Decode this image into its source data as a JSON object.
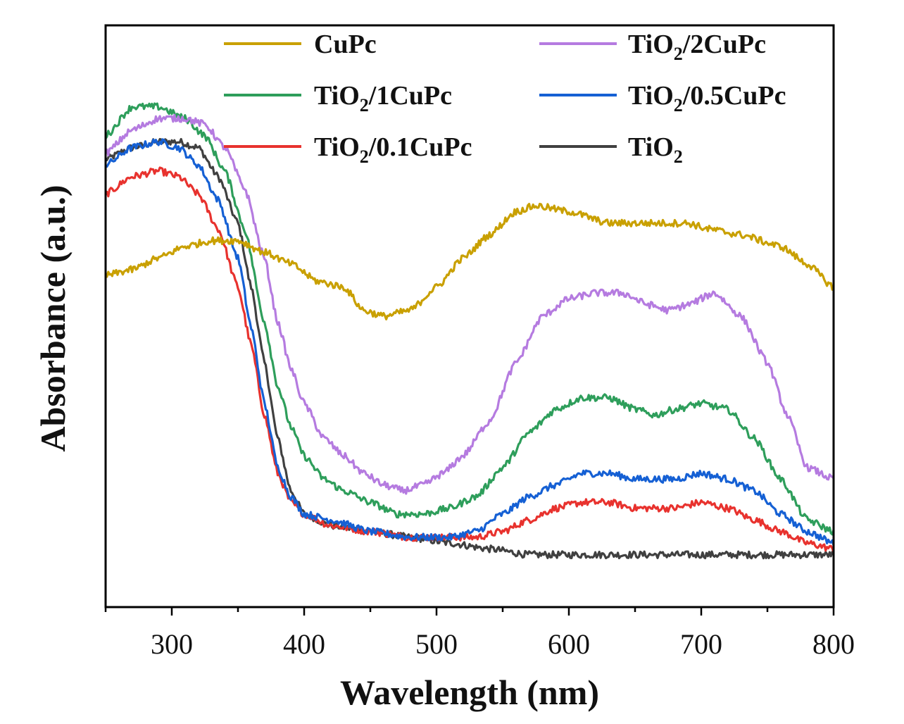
{
  "chart_data": {
    "type": "line",
    "xlabel": "Wavelength (nm)",
    "ylabel": "Absorbance (a.u.)",
    "xlim": [
      250,
      800
    ],
    "ylim": [
      0,
      1
    ],
    "xticks": [
      300,
      400,
      500,
      600,
      700,
      800
    ],
    "yticks": [],
    "legend_position": "top",
    "grid": false,
    "series": [
      {
        "name": "CuPc",
        "label_main": "CuPc",
        "label_sub": "",
        "label_tail": "",
        "color": "#C9A000",
        "points": [
          [
            250,
            0.57
          ],
          [
            270,
            0.58
          ],
          [
            290,
            0.6
          ],
          [
            310,
            0.62
          ],
          [
            330,
            0.63
          ],
          [
            350,
            0.63
          ],
          [
            370,
            0.61
          ],
          [
            390,
            0.59
          ],
          [
            410,
            0.56
          ],
          [
            430,
            0.55
          ],
          [
            445,
            0.51
          ],
          [
            460,
            0.5
          ],
          [
            480,
            0.51
          ],
          [
            500,
            0.55
          ],
          [
            520,
            0.6
          ],
          [
            540,
            0.64
          ],
          [
            560,
            0.68
          ],
          [
            575,
            0.69
          ],
          [
            600,
            0.68
          ],
          [
            630,
            0.66
          ],
          [
            660,
            0.66
          ],
          [
            690,
            0.66
          ],
          [
            705,
            0.65
          ],
          [
            730,
            0.64
          ],
          [
            760,
            0.62
          ],
          [
            780,
            0.59
          ],
          [
            800,
            0.55
          ]
        ]
      },
      {
        "name": "TiO2/2CuPc",
        "label_main": "TiO",
        "label_sub": "2",
        "label_tail": "/2CuPc",
        "color": "#B57BE0",
        "points": [
          [
            250,
            0.78
          ],
          [
            270,
            0.82
          ],
          [
            290,
            0.84
          ],
          [
            310,
            0.84
          ],
          [
            325,
            0.83
          ],
          [
            340,
            0.79
          ],
          [
            355,
            0.72
          ],
          [
            370,
            0.6
          ],
          [
            380,
            0.49
          ],
          [
            390,
            0.41
          ],
          [
            400,
            0.35
          ],
          [
            415,
            0.29
          ],
          [
            430,
            0.26
          ],
          [
            445,
            0.23
          ],
          [
            460,
            0.21
          ],
          [
            475,
            0.2
          ],
          [
            490,
            0.21
          ],
          [
            505,
            0.23
          ],
          [
            520,
            0.26
          ],
          [
            540,
            0.32
          ],
          [
            560,
            0.42
          ],
          [
            580,
            0.5
          ],
          [
            600,
            0.53
          ],
          [
            620,
            0.54
          ],
          [
            640,
            0.54
          ],
          [
            660,
            0.52
          ],
          [
            675,
            0.51
          ],
          [
            690,
            0.52
          ],
          [
            710,
            0.54
          ],
          [
            730,
            0.5
          ],
          [
            750,
            0.42
          ],
          [
            765,
            0.33
          ],
          [
            780,
            0.24
          ],
          [
            800,
            0.22
          ]
        ]
      },
      {
        "name": "TiO2/1CuPc",
        "label_main": "TiO",
        "label_sub": "2",
        "label_tail": "/1CuPc",
        "color": "#2E9E5B",
        "points": [
          [
            250,
            0.81
          ],
          [
            270,
            0.86
          ],
          [
            290,
            0.86
          ],
          [
            310,
            0.84
          ],
          [
            325,
            0.81
          ],
          [
            340,
            0.75
          ],
          [
            355,
            0.65
          ],
          [
            370,
            0.49
          ],
          [
            380,
            0.38
          ],
          [
            390,
            0.31
          ],
          [
            400,
            0.26
          ],
          [
            415,
            0.22
          ],
          [
            430,
            0.2
          ],
          [
            450,
            0.18
          ],
          [
            470,
            0.16
          ],
          [
            490,
            0.16
          ],
          [
            510,
            0.17
          ],
          [
            530,
            0.19
          ],
          [
            550,
            0.24
          ],
          [
            570,
            0.3
          ],
          [
            590,
            0.34
          ],
          [
            610,
            0.36
          ],
          [
            630,
            0.36
          ],
          [
            650,
            0.34
          ],
          [
            665,
            0.33
          ],
          [
            680,
            0.34
          ],
          [
            700,
            0.35
          ],
          [
            720,
            0.34
          ],
          [
            740,
            0.29
          ],
          [
            760,
            0.22
          ],
          [
            780,
            0.15
          ],
          [
            800,
            0.13
          ]
        ]
      },
      {
        "name": "TiO2/0.5CuPc",
        "label_main": "TiO",
        "label_sub": "2",
        "label_tail": "/0.5CuPc",
        "color": "#1560D4",
        "points": [
          [
            250,
            0.76
          ],
          [
            270,
            0.79
          ],
          [
            290,
            0.8
          ],
          [
            305,
            0.79
          ],
          [
            320,
            0.76
          ],
          [
            335,
            0.7
          ],
          [
            350,
            0.6
          ],
          [
            360,
            0.48
          ],
          [
            370,
            0.35
          ],
          [
            380,
            0.24
          ],
          [
            390,
            0.19
          ],
          [
            400,
            0.16
          ],
          [
            420,
            0.15
          ],
          [
            450,
            0.13
          ],
          [
            480,
            0.12
          ],
          [
            510,
            0.12
          ],
          [
            530,
            0.13
          ],
          [
            550,
            0.16
          ],
          [
            570,
            0.19
          ],
          [
            590,
            0.21
          ],
          [
            610,
            0.23
          ],
          [
            630,
            0.23
          ],
          [
            650,
            0.22
          ],
          [
            665,
            0.22
          ],
          [
            680,
            0.22
          ],
          [
            700,
            0.23
          ],
          [
            720,
            0.22
          ],
          [
            740,
            0.2
          ],
          [
            760,
            0.16
          ],
          [
            780,
            0.13
          ],
          [
            800,
            0.11
          ]
        ]
      },
      {
        "name": "TiO2/0.1CuPc",
        "label_main": "TiO",
        "label_sub": "2",
        "label_tail": "/0.1CuPc",
        "color": "#E8322E",
        "points": [
          [
            250,
            0.71
          ],
          [
            270,
            0.74
          ],
          [
            290,
            0.75
          ],
          [
            305,
            0.74
          ],
          [
            320,
            0.71
          ],
          [
            335,
            0.65
          ],
          [
            350,
            0.55
          ],
          [
            360,
            0.45
          ],
          [
            370,
            0.33
          ],
          [
            380,
            0.23
          ],
          [
            390,
            0.18
          ],
          [
            400,
            0.16
          ],
          [
            420,
            0.14
          ],
          [
            450,
            0.13
          ],
          [
            480,
            0.12
          ],
          [
            510,
            0.12
          ],
          [
            530,
            0.12
          ],
          [
            550,
            0.13
          ],
          [
            570,
            0.15
          ],
          [
            590,
            0.17
          ],
          [
            610,
            0.18
          ],
          [
            630,
            0.18
          ],
          [
            650,
            0.17
          ],
          [
            665,
            0.17
          ],
          [
            680,
            0.17
          ],
          [
            700,
            0.18
          ],
          [
            720,
            0.17
          ],
          [
            740,
            0.15
          ],
          [
            760,
            0.13
          ],
          [
            780,
            0.11
          ],
          [
            800,
            0.1
          ]
        ]
      },
      {
        "name": "TiO2",
        "label_main": "TiO",
        "label_sub": "2",
        "label_tail": "",
        "color": "#404040",
        "points": [
          [
            250,
            0.77
          ],
          [
            270,
            0.79
          ],
          [
            290,
            0.8
          ],
          [
            305,
            0.8
          ],
          [
            320,
            0.79
          ],
          [
            335,
            0.74
          ],
          [
            350,
            0.66
          ],
          [
            360,
            0.55
          ],
          [
            370,
            0.42
          ],
          [
            380,
            0.29
          ],
          [
            390,
            0.2
          ],
          [
            400,
            0.16
          ],
          [
            420,
            0.14
          ],
          [
            450,
            0.13
          ],
          [
            480,
            0.12
          ],
          [
            510,
            0.11
          ],
          [
            540,
            0.1
          ],
          [
            570,
            0.09
          ],
          [
            600,
            0.09
          ],
          [
            650,
            0.09
          ],
          [
            700,
            0.09
          ],
          [
            750,
            0.09
          ],
          [
            800,
            0.09
          ]
        ]
      }
    ]
  }
}
